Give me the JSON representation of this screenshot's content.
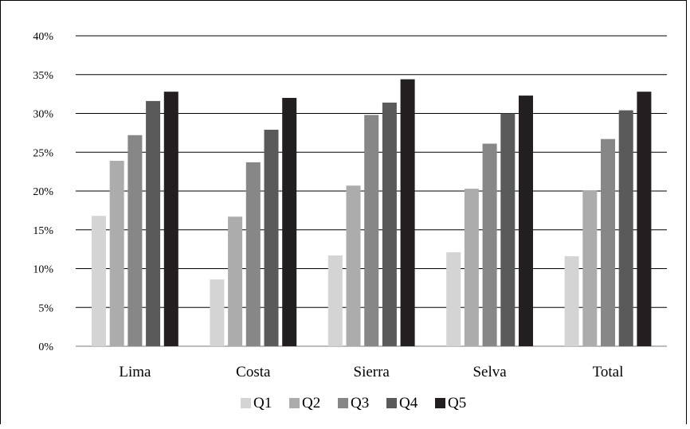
{
  "chart_data": {
    "type": "bar",
    "title": "",
    "xlabel": "",
    "ylabel": "",
    "ylim": [
      0,
      40
    ],
    "y_ticks": [
      "0%",
      "5%",
      "10%",
      "15%",
      "20%",
      "25%",
      "30%",
      "35%",
      "40%"
    ],
    "y_tick_values": [
      0,
      5,
      10,
      15,
      20,
      25,
      30,
      35,
      40
    ],
    "grid": true,
    "legend_position": "bottom",
    "categories": [
      "Lima",
      "Costa",
      "Sierra",
      "Selva",
      "Total"
    ],
    "series": [
      {
        "name": "Q1",
        "color": "#d4d4d4",
        "values": [
          16.8,
          8.6,
          11.7,
          12.1,
          11.6
        ]
      },
      {
        "name": "Q2",
        "color": "#acacac",
        "values": [
          23.9,
          16.7,
          20.7,
          20.3,
          20.1
        ]
      },
      {
        "name": "Q3",
        "color": "#878787",
        "values": [
          27.2,
          23.7,
          29.8,
          26.1,
          26.7
        ]
      },
      {
        "name": "Q4",
        "color": "#5a5a5a",
        "values": [
          31.6,
          27.9,
          31.4,
          30.0,
          30.4
        ]
      },
      {
        "name": "Q5",
        "color": "#231f20",
        "values": [
          32.8,
          32.0,
          34.4,
          32.3,
          32.8
        ]
      }
    ]
  }
}
